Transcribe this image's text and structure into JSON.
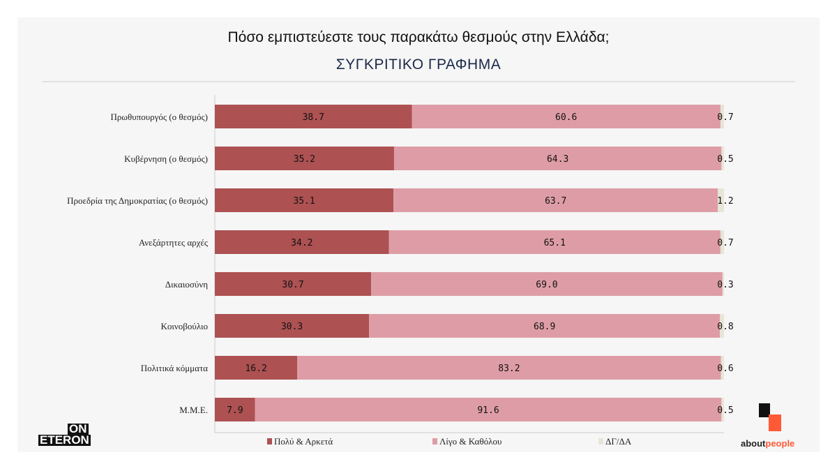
{
  "chart_data": {
    "type": "bar",
    "orientation": "horizontal",
    "stacked": true,
    "title": "Πόσο εμπιστεύεστε τους παρακάτω θεσμούς στην Ελλάδα;",
    "subtitle": "ΣΥΓΚΡΙΤΙΚΟ ΓΡΑΦΗΜΑ",
    "categories": [
      "Πρωθυπουργός (ο θεσμός)",
      "Κυβέρνηση (ο θεσμός)",
      "Προεδρία της Δημοκρατίας (ο θεσμός)",
      "Ανεξάρτητες αρχές",
      "Δικαιοσύνη",
      "Κοινοβούλιο",
      "Πολιτικά κόμματα",
      "Μ.Μ.Ε."
    ],
    "series": [
      {
        "name": "Πολύ & Αρκετά",
        "color": "#ad5152",
        "values": [
          38.7,
          35.2,
          35.1,
          34.2,
          30.7,
          30.3,
          16.2,
          7.9
        ]
      },
      {
        "name": "Λίγο & Καθόλου",
        "color": "#de9da6",
        "values": [
          60.6,
          64.3,
          63.7,
          65.1,
          69.0,
          68.9,
          83.2,
          91.6
        ]
      },
      {
        "name": "ΔΓ/ΔΑ",
        "color": "#e8e4d8",
        "values": [
          0.7,
          0.5,
          1.2,
          0.7,
          0.3,
          0.8,
          0.6,
          0.5
        ]
      }
    ],
    "xlim": [
      0,
      100
    ],
    "legend": "bottom",
    "grid": false
  },
  "logos": {
    "left": [
      "ON",
      "ETERON"
    ],
    "right": "aboutpeople"
  }
}
